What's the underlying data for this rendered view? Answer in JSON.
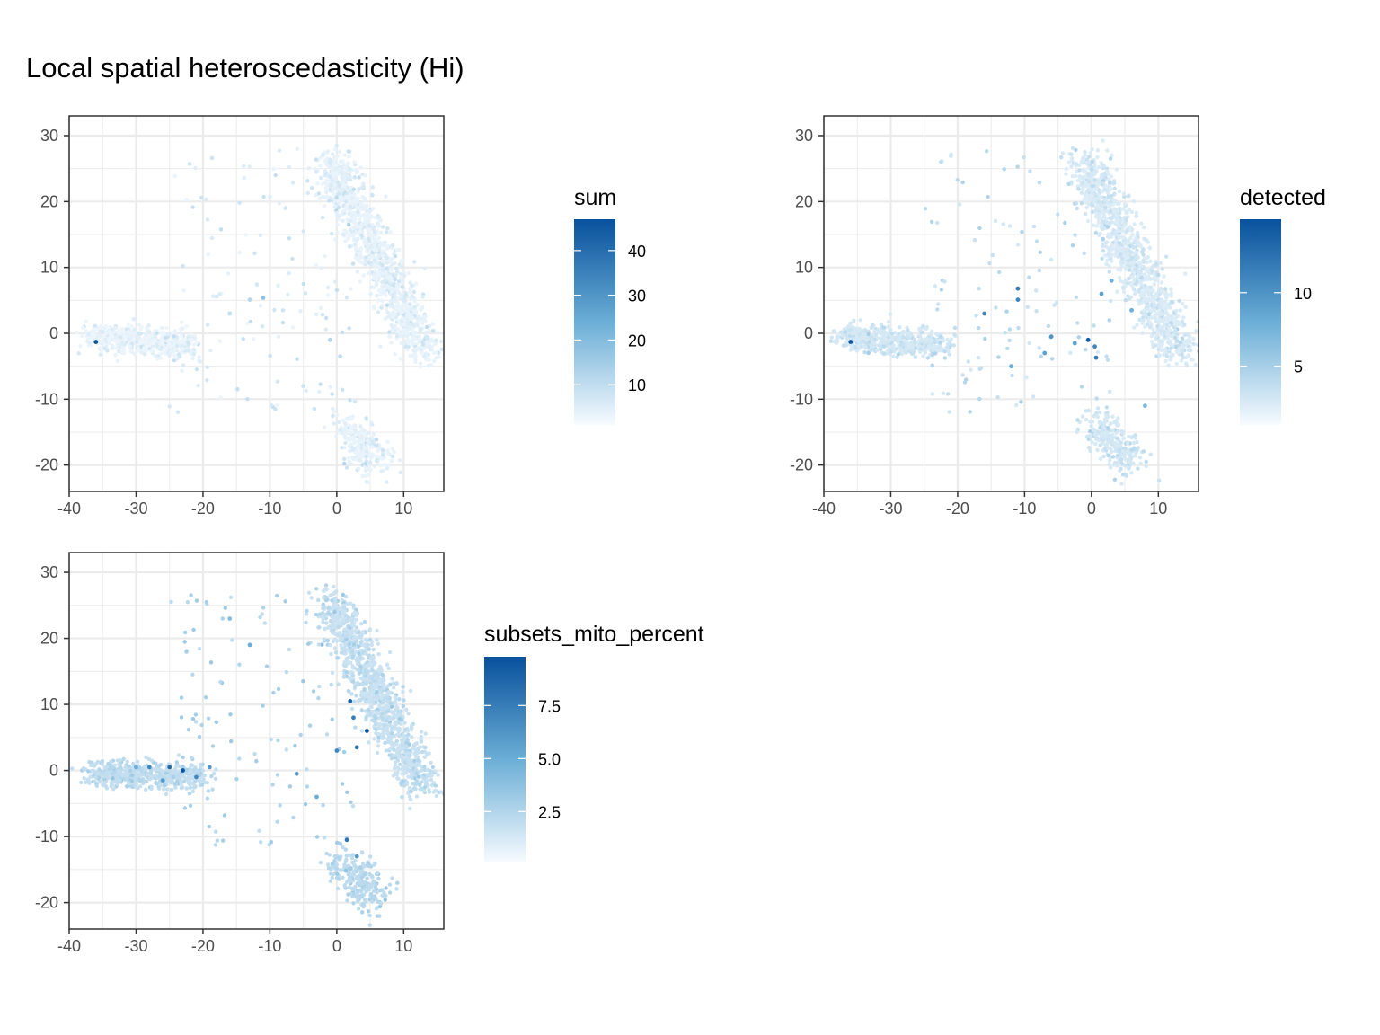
{
  "title": "Local spatial heteroscedasticity (Hi)",
  "colors": {
    "low": "#f7fbff",
    "mid": "#6baed6",
    "high": "#08519c",
    "grid": "#ebebeb",
    "panel_border": "#333333"
  },
  "chart_data": [
    {
      "type": "scatter",
      "title": "",
      "xlabel": "",
      "ylabel": "",
      "xlim": [
        -40,
        16
      ],
      "ylim": [
        -24,
        33
      ],
      "x_ticks": [
        -40,
        -30,
        -20,
        -10,
        0,
        10
      ],
      "y_ticks": [
        -20,
        -10,
        0,
        10,
        20,
        30
      ],
      "grid": true,
      "legend": {
        "title": "sum",
        "placement": "right",
        "breaks": [
          10,
          20,
          30,
          40
        ],
        "range": [
          1,
          47
        ]
      },
      "clusters": [
        {
          "name": "",
          "from": [
            -37,
            -0.5
          ],
          "to": [
            -22,
            -2
          ],
          "spread": 1.3,
          "n": 500,
          "color_level": 0.04
        },
        {
          "name": "",
          "from": [
            -1,
            26
          ],
          "to": [
            13,
            -3
          ],
          "spread": 1.6,
          "n": 1100,
          "color_level": 0.05
        },
        {
          "name": "",
          "from": [
            1,
            -13.5
          ],
          "to": [
            6,
            -20
          ],
          "spread": 1.6,
          "n": 250,
          "color_level": 0.05
        }
      ],
      "highlight_points": [
        {
          "x": -36,
          "y": -1.3,
          "v": 46
        },
        {
          "x": -11,
          "y": 5.4,
          "v": 18
        },
        {
          "x": -13,
          "y": 5.1,
          "v": 12
        },
        {
          "x": -16,
          "y": 3,
          "v": 10
        },
        {
          "x": -1,
          "y": -1,
          "v": 12
        },
        {
          "x": 0.5,
          "y": -3.5,
          "v": 10
        },
        {
          "x": -5,
          "y": -8,
          "v": 8
        }
      ]
    },
    {
      "type": "scatter",
      "title": "",
      "xlabel": "",
      "ylabel": "",
      "xlim": [
        -40,
        16
      ],
      "ylim": [
        -24,
        33
      ],
      "x_ticks": [
        -40,
        -30,
        -20,
        -10,
        0,
        10
      ],
      "y_ticks": [
        -20,
        -10,
        0,
        10,
        20,
        30
      ],
      "grid": true,
      "legend": {
        "title": "detected",
        "placement": "right",
        "breaks": [
          5,
          10
        ],
        "range": [
          1,
          15
        ]
      },
      "clusters": [
        {
          "name": "",
          "from": [
            -37,
            -0.5
          ],
          "to": [
            -22,
            -2
          ],
          "spread": 1.3,
          "n": 500,
          "color_level": 0.12
        },
        {
          "name": "",
          "from": [
            -1,
            26
          ],
          "to": [
            13,
            -3
          ],
          "spread": 1.6,
          "n": 1100,
          "color_level": 0.1
        },
        {
          "name": "",
          "from": [
            1,
            -13.5
          ],
          "to": [
            6,
            -20
          ],
          "spread": 1.6,
          "n": 250,
          "color_level": 0.12
        }
      ],
      "highlight_points": [
        {
          "x": -36,
          "y": -1.3,
          "v": 14.5
        },
        {
          "x": -0.5,
          "y": -1,
          "v": 14
        },
        {
          "x": -11,
          "y": 6.8,
          "v": 12
        },
        {
          "x": -11,
          "y": 5.1,
          "v": 11
        },
        {
          "x": -16,
          "y": 3,
          "v": 11
        },
        {
          "x": 0.5,
          "y": -2,
          "v": 11
        },
        {
          "x": 0.7,
          "y": -3.7,
          "v": 12
        },
        {
          "x": -6,
          "y": -0.5,
          "v": 10
        },
        {
          "x": -7,
          "y": -3,
          "v": 9
        },
        {
          "x": -2.5,
          "y": -1.5,
          "v": 9
        },
        {
          "x": 1.5,
          "y": 6,
          "v": 9
        },
        {
          "x": 3,
          "y": 8,
          "v": 8
        },
        {
          "x": 6,
          "y": 3.5,
          "v": 8
        },
        {
          "x": 8,
          "y": -11,
          "v": 7
        },
        {
          "x": -12,
          "y": -5,
          "v": 8
        }
      ]
    },
    {
      "type": "scatter",
      "title": "",
      "xlabel": "",
      "ylabel": "",
      "xlim": [
        -40,
        16
      ],
      "ylim": [
        -24,
        33
      ],
      "x_ticks": [
        -40,
        -30,
        -20,
        -10,
        0,
        10
      ],
      "y_ticks": [
        -20,
        -10,
        0,
        10,
        20,
        30
      ],
      "grid": true,
      "legend": {
        "title": "subsets_mito_percent",
        "placement": "right",
        "breaks": [
          2.5,
          5.0,
          7.5
        ],
        "labels": [
          "2.5",
          "5.0",
          "7.5"
        ],
        "range": [
          0.1,
          9.8
        ]
      },
      "clusters": [
        {
          "name": "",
          "from": [
            -37,
            -0.5
          ],
          "to": [
            -20,
            -1
          ],
          "spread": 1.3,
          "n": 500,
          "color_level": 0.18
        },
        {
          "name": "",
          "from": [
            -1,
            26
          ],
          "to": [
            13,
            -3
          ],
          "spread": 1.6,
          "n": 1100,
          "color_level": 0.16
        },
        {
          "name": "",
          "from": [
            1,
            -13.5
          ],
          "to": [
            6,
            -20
          ],
          "spread": 1.6,
          "n": 250,
          "color_level": 0.2
        }
      ],
      "highlight_points": [
        {
          "x": -23,
          "y": 0,
          "v": 9.5
        },
        {
          "x": -25,
          "y": 0.5,
          "v": 8.5
        },
        {
          "x": -28,
          "y": 0.5,
          "v": 7
        },
        {
          "x": -21,
          "y": -1,
          "v": 7
        },
        {
          "x": -19,
          "y": 0.5,
          "v": 6
        },
        {
          "x": -26,
          "y": -1.5,
          "v": 6
        },
        {
          "x": -30,
          "y": 0.5,
          "v": 5
        },
        {
          "x": 4.5,
          "y": 6,
          "v": 9.8
        },
        {
          "x": 2,
          "y": 10.5,
          "v": 9
        },
        {
          "x": 3,
          "y": 3.5,
          "v": 8
        },
        {
          "x": 2.5,
          "y": 8,
          "v": 7.5
        },
        {
          "x": 1.5,
          "y": -10.5,
          "v": 8
        },
        {
          "x": 0,
          "y": 3,
          "v": 7
        },
        {
          "x": 3,
          "y": -13,
          "v": 6
        },
        {
          "x": -6,
          "y": -0.5,
          "v": 6
        },
        {
          "x": -3,
          "y": -4,
          "v": 5
        },
        {
          "x": -13,
          "y": 19,
          "v": 5
        },
        {
          "x": -16,
          "y": 23,
          "v": 4
        }
      ]
    }
  ]
}
